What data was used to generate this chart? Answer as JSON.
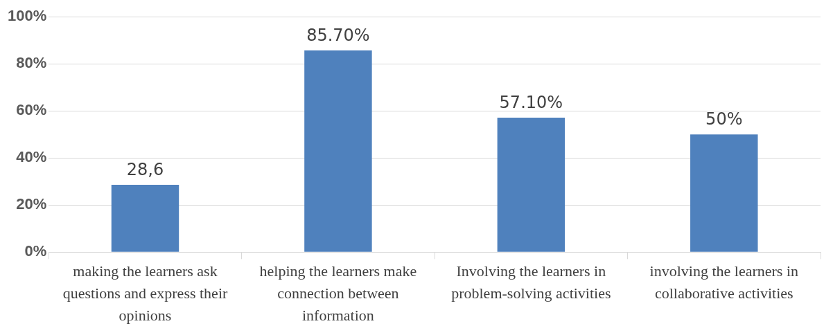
{
  "chart_data": {
    "type": "bar",
    "categories": [
      "making the learners ask questions and express their opinions",
      "helping the learners make connection between information",
      "Involving the learners in problem-solving activities",
      "involving the learners in collaborative activities"
    ],
    "values": [
      28.6,
      85.7,
      57.1,
      50
    ],
    "color": "#4f81bd",
    "value_labels": [
      "28,6",
      "85.70%",
      "57.10%",
      "50%"
    ],
    "ylim": [
      0,
      100
    ],
    "yticks": [
      {
        "value": 0,
        "label": "0%"
      },
      {
        "value": 20,
        "label": "20%"
      },
      {
        "value": 40,
        "label": "40%"
      },
      {
        "value": 60,
        "label": "60%"
      },
      {
        "value": 80,
        "label": "80%"
      },
      {
        "value": 100,
        "label": "100%"
      }
    ],
    "grid": "y",
    "legend": false
  }
}
